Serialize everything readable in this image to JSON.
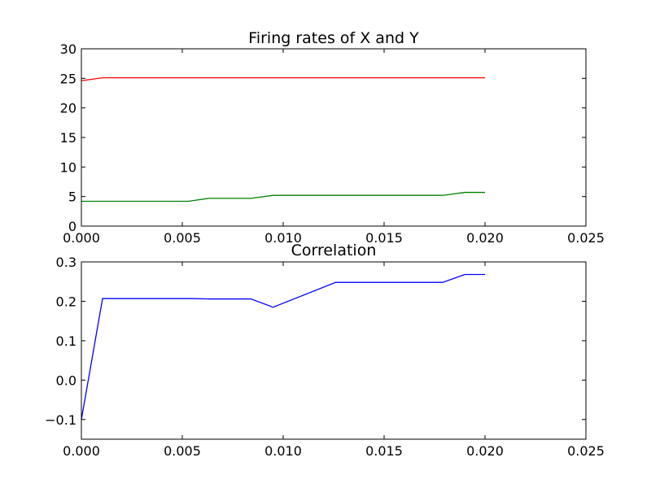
{
  "chart_data": [
    {
      "type": "line",
      "title": "Firing rates of X and Y",
      "xlabel": "",
      "ylabel": "",
      "xlim": [
        0,
        0.025
      ],
      "ylim": [
        0,
        30
      ],
      "xticks": [
        0.0,
        0.005,
        0.01,
        0.015,
        0.02,
        0.025
      ],
      "xtick_labels": [
        "0.000",
        "0.005",
        "0.010",
        "0.015",
        "0.020",
        "0.025"
      ],
      "yticks": [
        0,
        5,
        10,
        15,
        20,
        25,
        30
      ],
      "ytick_labels": [
        "0",
        "5",
        "10",
        "15",
        "20",
        "25",
        "30"
      ],
      "grid": false,
      "series": [
        {
          "color": "#ff0000",
          "x": [
            0.0,
            0.00105,
            0.0021,
            0.0053,
            0.0063,
            0.0084,
            0.0095,
            0.0126,
            0.0179,
            0.019,
            0.02
          ],
          "y": [
            24.6,
            25.1,
            25.1,
            25.1,
            25.1,
            25.1,
            25.1,
            25.1,
            25.1,
            25.1,
            25.1
          ]
        },
        {
          "color": "#008000",
          "x": [
            0.0,
            0.00105,
            0.0021,
            0.0053,
            0.0063,
            0.0084,
            0.0095,
            0.0126,
            0.0179,
            0.019,
            0.02
          ],
          "y": [
            4.2,
            4.2,
            4.2,
            4.2,
            4.7,
            4.7,
            5.2,
            5.2,
            5.2,
            5.7,
            5.7
          ]
        }
      ]
    },
    {
      "type": "line",
      "title": "Correlation",
      "xlabel": "",
      "ylabel": "",
      "xlim": [
        0,
        0.025
      ],
      "ylim": [
        -0.15,
        0.3
      ],
      "xticks": [
        0.0,
        0.005,
        0.01,
        0.015,
        0.02,
        0.025
      ],
      "xtick_labels": [
        "0.000",
        "0.005",
        "0.010",
        "0.015",
        "0.020",
        "0.025"
      ],
      "yticks": [
        -0.1,
        0.0,
        0.1,
        0.2,
        0.3
      ],
      "ytick_labels": [
        "−0.1",
        "0.0",
        "0.1",
        "0.2",
        "0.3"
      ],
      "grid": false,
      "series": [
        {
          "color": "#0000ff",
          "x": [
            0.0,
            0.00105,
            0.0053,
            0.0063,
            0.0084,
            0.0095,
            0.0126,
            0.0179,
            0.019,
            0.02
          ],
          "y": [
            -0.1,
            0.207,
            0.207,
            0.206,
            0.206,
            0.185,
            0.248,
            0.248,
            0.268,
            0.268
          ]
        }
      ]
    }
  ]
}
